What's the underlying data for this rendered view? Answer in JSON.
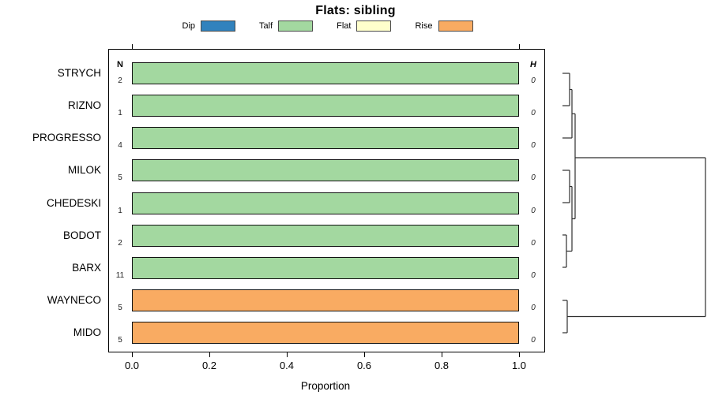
{
  "title": "Flats: sibling",
  "legend": [
    {
      "label": "Dip",
      "color": "#3182bd"
    },
    {
      "label": "Talf",
      "color": "#a3d8a0"
    },
    {
      "label": "Flat",
      "color": "#ffffcc"
    },
    {
      "label": "Rise",
      "color": "#f9ab62"
    }
  ],
  "columns": {
    "n_header": "N",
    "h_header": "H"
  },
  "x_axis": {
    "label": "Proportion",
    "tick_labels": [
      "0.0",
      "0.2",
      "0.4",
      "0.6",
      "0.8",
      "1.0"
    ]
  },
  "rows": [
    {
      "label": "STRYCH",
      "n": "2",
      "h": "0",
      "value": 1.0,
      "segment": "Talf"
    },
    {
      "label": "RIZNO",
      "n": "1",
      "h": "0",
      "value": 1.0,
      "segment": "Talf"
    },
    {
      "label": "PROGRESSO",
      "n": "4",
      "h": "0",
      "value": 1.0,
      "segment": "Talf"
    },
    {
      "label": "MILOK",
      "n": "5",
      "h": "0",
      "value": 1.0,
      "segment": "Talf"
    },
    {
      "label": "CHEDESKI",
      "n": "1",
      "h": "0",
      "value": 1.0,
      "segment": "Talf"
    },
    {
      "label": "BODOT",
      "n": "2",
      "h": "0",
      "value": 1.0,
      "segment": "Talf"
    },
    {
      "label": "BARX",
      "n": "11",
      "h": "0",
      "value": 1.0,
      "segment": "Talf"
    },
    {
      "label": "WAYNECO",
      "n": "5",
      "h": "0",
      "value": 1.0,
      "segment": "Rise"
    },
    {
      "label": "MIDO",
      "n": "5",
      "h": "0",
      "value": 1.0,
      "segment": "Rise"
    }
  ],
  "chart_data": {
    "type": "bar",
    "orientation": "horizontal",
    "title": "Flats: sibling",
    "xlabel": "Proportion",
    "xlim": [
      0.0,
      1.0
    ],
    "x_ticks": [
      0.0,
      0.2,
      0.4,
      0.6,
      0.8,
      1.0
    ],
    "top_axis_ticks": [
      0.0,
      1.0
    ],
    "grid": false,
    "legend_position": "top",
    "categories": [
      "STRYCH",
      "RIZNO",
      "PROGRESSO",
      "MILOK",
      "CHEDESKI",
      "BODOT",
      "BARX",
      "WAYNECO",
      "MIDO"
    ],
    "N": [
      2,
      1,
      4,
      5,
      1,
      2,
      11,
      5,
      5
    ],
    "H": [
      0,
      0,
      0,
      0,
      0,
      0,
      0,
      0,
      0
    ],
    "series": [
      {
        "name": "Dip",
        "color": "#3182bd",
        "values": [
          0,
          0,
          0,
          0,
          0,
          0,
          0,
          0,
          0
        ]
      },
      {
        "name": "Talf",
        "color": "#a3d8a0",
        "values": [
          1,
          1,
          1,
          1,
          1,
          1,
          1,
          0,
          0
        ]
      },
      {
        "name": "Flat",
        "color": "#ffffcc",
        "values": [
          0,
          0,
          0,
          0,
          0,
          0,
          0,
          0,
          0
        ]
      },
      {
        "name": "Rise",
        "color": "#f9ab62",
        "values": [
          0,
          0,
          0,
          0,
          0,
          0,
          0,
          1,
          1
        ]
      }
    ],
    "dendrogram": {
      "position": "right",
      "stroke": "#2e2e2e",
      "merges": [
        {
          "join": [
            "STRYCH",
            "RIZNO"
          ],
          "height": 0
        },
        {
          "join": [
            "STRYCH+RIZNO",
            "PROGRESSO"
          ],
          "height": 0
        },
        {
          "join": [
            "MILOK",
            "CHEDESKI"
          ],
          "height": 0
        },
        {
          "join": [
            "BODOT",
            "BARX"
          ],
          "height": 0
        },
        {
          "join": [
            "MILOK+CHEDESKI",
            "BODOT+BARX"
          ],
          "height": 0
        },
        {
          "join": [
            "STRYCH+RIZNO+PROGRESSO",
            "MILOK+CHEDESKI+BODOT+BARX"
          ],
          "height": 0
        },
        {
          "join": [
            "WAYNECO",
            "MIDO"
          ],
          "height": 0
        },
        {
          "join": [
            "green-cluster",
            "WAYNECO+MIDO"
          ],
          "height": 1
        }
      ],
      "segments": [
        [
          17,
          38,
          26,
          38
        ],
        [
          17,
          79,
          26,
          79
        ],
        [
          26,
          38,
          26,
          79
        ],
        [
          26,
          58.5,
          29,
          58.5
        ],
        [
          17,
          120,
          29,
          120
        ],
        [
          29,
          58.5,
          29,
          120
        ],
        [
          17,
          161,
          26,
          161
        ],
        [
          17,
          202,
          26,
          202
        ],
        [
          26,
          161,
          26,
          202
        ],
        [
          17,
          243,
          22,
          243
        ],
        [
          17,
          284,
          22,
          284
        ],
        [
          22,
          243,
          22,
          284
        ],
        [
          26,
          181.5,
          29,
          181.5
        ],
        [
          22,
          263.5,
          29,
          263.5
        ],
        [
          29,
          181.5,
          29,
          263.5
        ],
        [
          29,
          89.25,
          33,
          89.25
        ],
        [
          29,
          222.5,
          33,
          222.5
        ],
        [
          33,
          89.25,
          33,
          222.5
        ],
        [
          17,
          326,
          23,
          326
        ],
        [
          17,
          367,
          23,
          367
        ],
        [
          23,
          326,
          23,
          367
        ],
        [
          33,
          145,
          198,
          145
        ],
        [
          23,
          346.5,
          198,
          346.5
        ],
        [
          198,
          145,
          198,
          346.5
        ]
      ]
    }
  }
}
